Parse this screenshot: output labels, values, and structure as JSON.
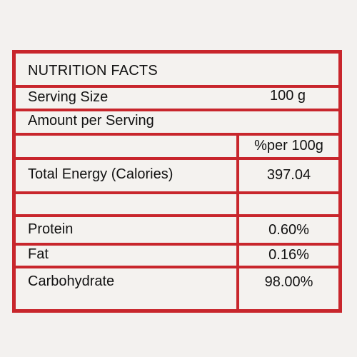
{
  "title": "NUTRITION FACTS",
  "serving": {
    "label": "Serving Size",
    "value": "100 g"
  },
  "amount_label": "Amount per Serving",
  "column_header": "%per 100g",
  "rows": [
    {
      "label": "Total Energy (Calories)",
      "value": "397.04"
    },
    {
      "label": "Protein",
      "value": "0.60%"
    },
    {
      "label": "Fat",
      "value": "0.16%"
    },
    {
      "label": "Carbohydrate",
      "value": "98.00%"
    }
  ],
  "colors": {
    "border": "#c8262c",
    "text": "#111111",
    "background": "#f4f2ef"
  }
}
